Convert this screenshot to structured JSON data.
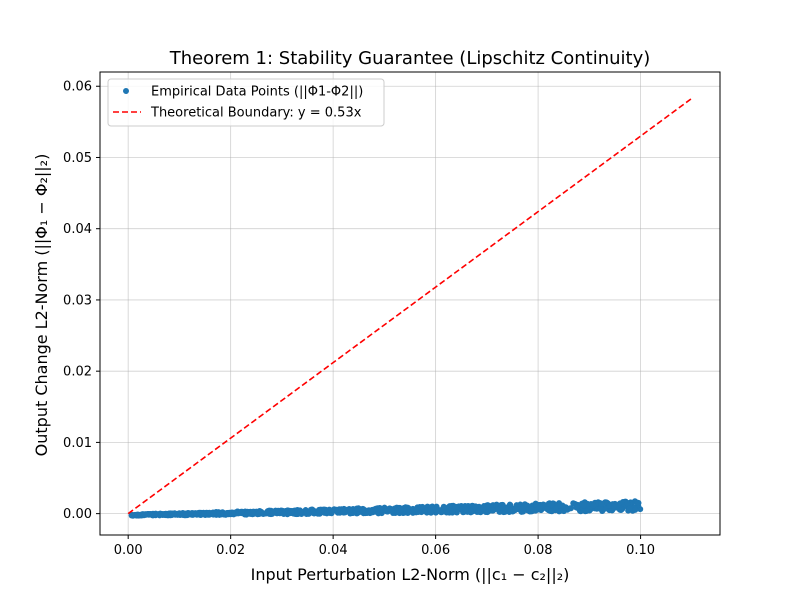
{
  "chart_data": {
    "type": "scatter",
    "title": "Theorem 1: Stability Guarantee (Lipschitz Continuity)",
    "xlabel": "Input Perturbation L2-Norm (||c₁ − c₂||₂)",
    "ylabel": "Output Change L2-Norm (||Φ₁ − Φ₂||₂)",
    "xlim": [
      -0.0055,
      0.1155
    ],
    "ylim": [
      -0.003,
      0.062
    ],
    "x_ticks": [
      0.0,
      0.02,
      0.04,
      0.06,
      0.08,
      0.1
    ],
    "x_tick_labels": [
      "0.00",
      "0.02",
      "0.04",
      "0.06",
      "0.08",
      "0.10"
    ],
    "y_ticks": [
      0.0,
      0.01,
      0.02,
      0.03,
      0.04,
      0.05,
      0.06
    ],
    "y_tick_labels": [
      "0.00",
      "0.01",
      "0.02",
      "0.03",
      "0.04",
      "0.05",
      "0.06"
    ],
    "grid": true,
    "legend_position": "top-left",
    "series": [
      {
        "name": "Empirical Data Points (||Φ1-Φ2||)",
        "kind": "scatter",
        "color": "#1f77b4",
        "x_range": [
          0.0005,
          0.1
        ],
        "trend_slope": 0.013,
        "trend_intercept": -0.0002,
        "spread_base": 0.0001,
        "spread_slope": 0.006,
        "count": 1000
      },
      {
        "name": "Theoretical Boundary: y = 0.53x",
        "kind": "line",
        "color": "#ff0000",
        "dash": "dashed",
        "x": [
          0.0,
          0.11
        ],
        "y": [
          0.0,
          0.0583
        ]
      }
    ]
  }
}
